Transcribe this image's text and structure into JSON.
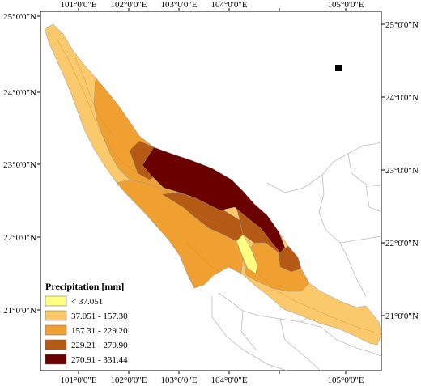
{
  "map": {
    "top_ticks": [
      "101°0'0\"E",
      "102°0'0\"E",
      "103°0'0\"E",
      "104°0'0\"E",
      "105°0'0\"E"
    ],
    "bottom_ticks": [
      "101°0'0\"E",
      "102°0'0\"E",
      "103°0'0\"E",
      "104°0'0\"E",
      "105°0'0\"E"
    ],
    "left_ticks": [
      "25°0'0\"N",
      "24°0'0\"N",
      "23°0'0\"N",
      "22°0'0\"N",
      "21°0'0\"N"
    ],
    "right_ticks": [
      "25°0'0\"N",
      "24°0'0\"N",
      "23°0'0\"N",
      "22°0'0\"N",
      "21°0'0\"N"
    ]
  },
  "legend": {
    "title": "Precipitation [mm]",
    "classes": [
      {
        "label": "< 37.051",
        "color": "#ffff80"
      },
      {
        "label": "37.051 - 157.30",
        "color": "#f9c96b"
      },
      {
        "label": "157.31 - 229.20",
        "color": "#f0a030"
      },
      {
        "label": "229.21 - 270.90",
        "color": "#b45a14"
      },
      {
        "label": "270.91 - 331.44",
        "color": "#6b0000"
      }
    ]
  },
  "colors": {
    "class1": "#ffff80",
    "class2": "#f9c96b",
    "class3": "#f0a030",
    "class4": "#b45a14",
    "class5": "#6b0000",
    "boundary": "#bbbbbb",
    "frame": "#000000"
  }
}
